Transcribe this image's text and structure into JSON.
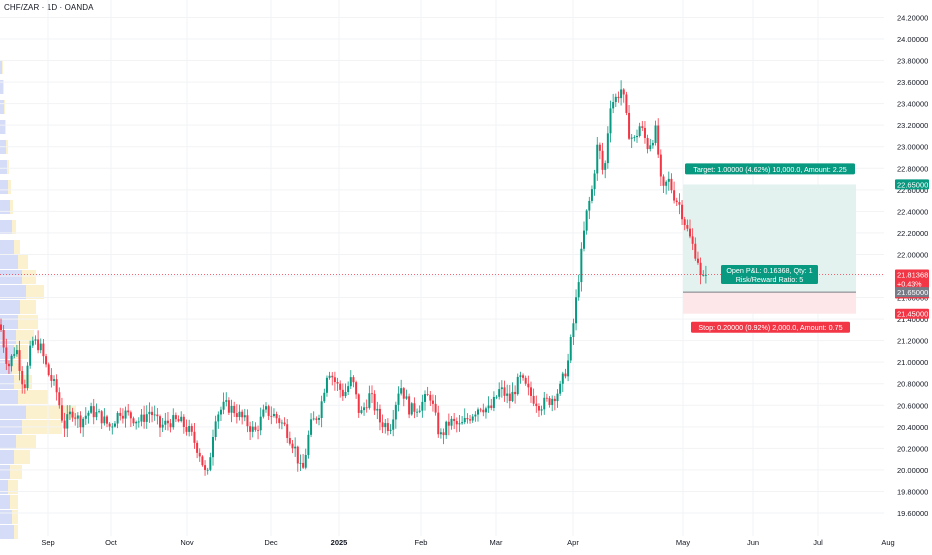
{
  "symbol_title": "CHF/ZAR · 1D · OANDA",
  "colors": {
    "up": "#089981",
    "down": "#f23645",
    "target_zone": "#e3f2ee",
    "stop_zone": "#fde7e9",
    "target_tag": "#089981",
    "stop_tag": "#f23645",
    "price_line": "#f23645",
    "axis_text": "#131722",
    "volume_profile_blue": "#c9d3f5",
    "volume_profile_yellow": "#fbeec2"
  },
  "chart_data": {
    "type": "candlestick",
    "title": "CHF/ZAR · 1D · OANDA",
    "ylim": [
      19.5,
      24.25
    ],
    "y_ticks": [
      "24.20000",
      "24.00000",
      "23.80000",
      "23.60000",
      "23.40000",
      "23.20000",
      "23.00000",
      "22.80000",
      "22.60000",
      "22.40000",
      "22.20000",
      "22.00000",
      "21.80000",
      "21.60000",
      "21.40000",
      "21.20000",
      "21.00000",
      "20.80000",
      "20.60000",
      "20.40000",
      "20.20000",
      "20.00000",
      "19.80000",
      "19.60000"
    ],
    "x_ticks": [
      "Sep",
      "Oct",
      "Nov",
      "Dec",
      "2025",
      "Feb",
      "Mar",
      "Apr",
      "May",
      "Jun",
      "Jul",
      "Aug"
    ],
    "candles_approx": [
      {
        "period": "Sep",
        "low": 20.5,
        "high": 21.3
      },
      {
        "period": "Oct",
        "low": 20.2,
        "high": 20.8
      },
      {
        "period": "Nov",
        "low": 19.82,
        "high": 20.7
      },
      {
        "period": "Dec",
        "low": 19.88,
        "high": 21.0
      },
      {
        "period": "2025",
        "low": 20.3,
        "high": 21.0
      },
      {
        "period": "Feb",
        "low": 20.2,
        "high": 20.8
      },
      {
        "period": "Mar",
        "low": 20.45,
        "high": 20.95
      },
      {
        "period": "Apr",
        "low": 20.9,
        "high": 23.87
      },
      {
        "period": "May",
        "low": 21.79,
        "high": 22.8
      }
    ],
    "position": {
      "entry": 21.65,
      "target": 22.65,
      "stop": 21.45,
      "target_label": "Target: 1.00000 (4.62%) 10,000.0, Amount: 2.25",
      "stop_label": "Stop: 0.20000 (0.92%) 2,000.0, Amount: 0.75",
      "pnl_label": "Open P&L: 0.16368, Qty: 1",
      "rr_label": "Risk/Reward Ratio: 5"
    },
    "last_price": {
      "value": 21.81368,
      "price_label": "21.81368",
      "change_label": "+0.43%",
      "countdown_label": "14:25:58"
    },
    "price_tags": {
      "target": "22.65000",
      "entry": "21.65000",
      "stop": "21.45000"
    }
  }
}
